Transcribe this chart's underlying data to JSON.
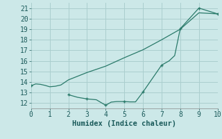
{
  "xlabel": "Humidex (Indice chaleur)",
  "xlim": [
    0,
    10
  ],
  "ylim": [
    11.5,
    21.5
  ],
  "yticks": [
    12,
    13,
    14,
    15,
    16,
    17,
    18,
    19,
    20,
    21
  ],
  "xticks": [
    0,
    1,
    2,
    3,
    4,
    5,
    6,
    7,
    8,
    9,
    10
  ],
  "bg_color": "#cce8e8",
  "grid_color": "#aacece",
  "line_color": "#2a7a6a",
  "line1_x": [
    0.0,
    0.25,
    0.5,
    0.75,
    1.0,
    1.3,
    1.6,
    2.0,
    2.5,
    3.0,
    4.0,
    5.0,
    6.0,
    7.0,
    8.0,
    9.0,
    10.0
  ],
  "line1_y": [
    13.65,
    13.82,
    13.78,
    13.68,
    13.55,
    13.6,
    13.72,
    14.2,
    14.55,
    14.9,
    15.5,
    16.3,
    17.05,
    18.0,
    19.0,
    20.55,
    20.45
  ],
  "line2_x": [
    2.0,
    2.5,
    3.0,
    3.5,
    4.0,
    4.3,
    4.6,
    5.0,
    5.3,
    5.6,
    6.0,
    7.0,
    7.4,
    7.7,
    8.0,
    9.0,
    10.0
  ],
  "line2_y": [
    12.8,
    12.55,
    12.4,
    12.32,
    11.8,
    12.1,
    12.15,
    12.15,
    12.12,
    12.12,
    13.05,
    15.6,
    16.0,
    16.5,
    19.05,
    21.0,
    20.45
  ],
  "line2_markers_x": [
    2,
    3,
    4,
    5,
    6,
    7,
    8,
    9,
    10
  ],
  "line2_markers_y": [
    12.8,
    12.4,
    11.8,
    12.15,
    13.05,
    15.6,
    19.05,
    21.0,
    20.45
  ],
  "font_size": 7,
  "label_fontsize": 7.5
}
